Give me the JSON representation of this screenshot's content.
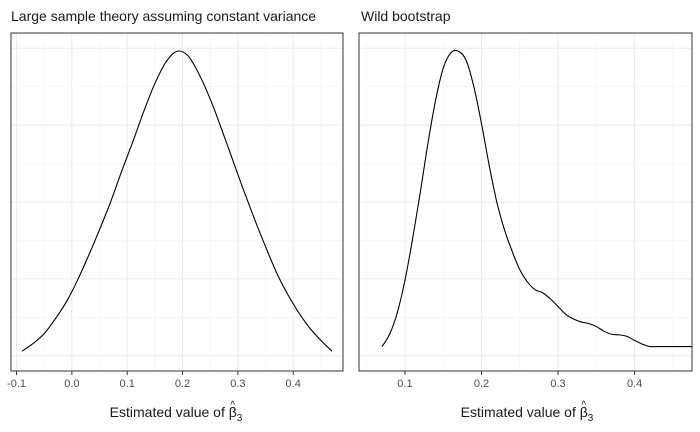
{
  "chart_data": [
    {
      "type": "line",
      "title": "Large sample theory assuming constant variance",
      "xlabel_prefix": "Estimated value of ",
      "xlabel_symbol": "β",
      "xlabel_hat": "^",
      "xlabel_subscript": "3",
      "xlim": [
        -0.11,
        0.49
      ],
      "ylim": [
        0,
        1
      ],
      "x_ticks": [
        -0.1,
        0.0,
        0.1,
        0.2,
        0.3,
        0.4
      ],
      "x_tick_labels": [
        "-0.1",
        "0.0",
        "0.1",
        "0.2",
        "0.3",
        "0.4"
      ],
      "grid": true,
      "series": [
        {
          "x": [
            -0.09,
            -0.07,
            -0.05,
            -0.03,
            -0.01,
            0.01,
            0.03,
            0.05,
            0.07,
            0.09,
            0.11,
            0.13,
            0.15,
            0.17,
            0.19,
            0.21,
            0.23,
            0.25,
            0.27,
            0.29,
            0.31,
            0.33,
            0.35,
            0.37,
            0.39,
            0.41,
            0.43,
            0.45,
            0.47
          ],
          "y": [
            0.015,
            0.04,
            0.072,
            0.12,
            0.175,
            0.245,
            0.325,
            0.41,
            0.5,
            0.6,
            0.695,
            0.795,
            0.885,
            0.955,
            0.99,
            0.975,
            0.915,
            0.835,
            0.74,
            0.64,
            0.54,
            0.445,
            0.355,
            0.27,
            0.2,
            0.14,
            0.09,
            0.05,
            0.015
          ]
        }
      ]
    },
    {
      "type": "line",
      "title": "Wild bootstrap",
      "xlabel_prefix": "Estimated value of ",
      "xlabel_symbol": "β",
      "xlabel_hat": "^",
      "xlabel_subscript": "3",
      "xlim": [
        0.04,
        0.475
      ],
      "ylim": [
        0,
        1
      ],
      "x_ticks": [
        0.1,
        0.2,
        0.3,
        0.4
      ],
      "x_tick_labels": [
        "0.1",
        "0.2",
        "0.3",
        "0.4"
      ],
      "grid": true,
      "series": [
        {
          "x": [
            0.07,
            0.08,
            0.09,
            0.1,
            0.11,
            0.12,
            0.13,
            0.14,
            0.15,
            0.16,
            0.17,
            0.18,
            0.19,
            0.2,
            0.21,
            0.22,
            0.23,
            0.24,
            0.25,
            0.26,
            0.27,
            0.28,
            0.29,
            0.3,
            0.31,
            0.32,
            0.33,
            0.34,
            0.35,
            0.36,
            0.37,
            0.38,
            0.39,
            0.4,
            0.41,
            0.42,
            0.43,
            0.44,
            0.45,
            0.46,
            0.475
          ],
          "y": [
            0.03,
            0.07,
            0.14,
            0.245,
            0.38,
            0.53,
            0.69,
            0.83,
            0.935,
            0.985,
            0.99,
            0.96,
            0.875,
            0.755,
            0.62,
            0.5,
            0.41,
            0.34,
            0.28,
            0.24,
            0.215,
            0.205,
            0.185,
            0.16,
            0.135,
            0.12,
            0.11,
            0.105,
            0.095,
            0.08,
            0.07,
            0.068,
            0.063,
            0.05,
            0.038,
            0.03,
            0.03,
            0.03,
            0.03,
            0.03,
            0.03
          ]
        }
      ]
    }
  ]
}
